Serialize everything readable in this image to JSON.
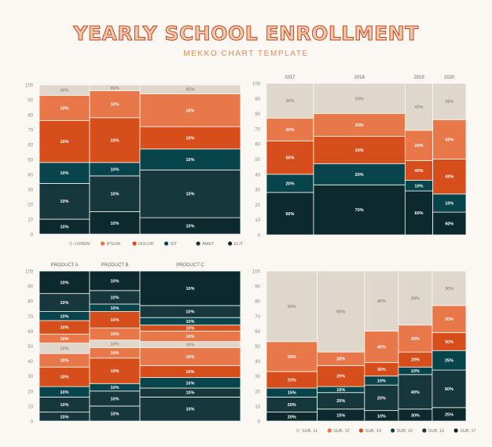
{
  "header": {
    "title": "YEARLY SCHOOL ENROLLMENT",
    "subtitle": "MEKKO CHART TEMPLATE"
  },
  "colors": {
    "lorem": "#dfd6cc",
    "ipsum": "#e8784a",
    "dolor": "#d64e1c",
    "sit": "#07444c",
    "amet": "#16383d",
    "elit": "#0c2a2d",
    "label_dark": "#1b1b1b",
    "label_light": "#ffffff",
    "label_beige": "#a38c76",
    "axis": "#8a8a8a"
  },
  "chart_data": [
    {
      "type": "mekko",
      "title": "",
      "xlabel": "",
      "ylabel": "",
      "ylim": [
        0,
        100
      ],
      "yticks": [
        0,
        10,
        20,
        30,
        40,
        50,
        60,
        70,
        80,
        90,
        100
      ],
      "column_labels": [
        "",
        "",
        ""
      ],
      "columns": [
        {
          "share": 1,
          "segments": [
            {
              "key": "elit",
              "value": 10,
              "label": "10%"
            },
            {
              "key": "amet",
              "value": 24,
              "label": "10%"
            },
            {
              "key": "sit",
              "value": 14,
              "label": "10%"
            },
            {
              "key": "dolor",
              "value": 28,
              "label": "10%"
            },
            {
              "key": "ipsum",
              "value": 17,
              "label": "10%"
            },
            {
              "key": "lorem",
              "value": 7,
              "label": "10%"
            }
          ]
        },
        {
          "share": 1,
          "segments": [
            {
              "key": "elit",
              "value": 15,
              "label": "10%"
            },
            {
              "key": "amet",
              "value": 24,
              "label": "10%"
            },
            {
              "key": "sit",
              "value": 9,
              "label": "10%"
            },
            {
              "key": "dolor",
              "value": 30,
              "label": "10%"
            },
            {
              "key": "ipsum",
              "value": 18,
              "label": "10%"
            },
            {
              "key": "lorem",
              "value": 4,
              "label": "05%"
            }
          ]
        },
        {
          "share": 2,
          "segments": [
            {
              "key": "elit",
              "value": 11,
              "label": "10%"
            },
            {
              "key": "amet",
              "value": 32,
              "label": "10%"
            },
            {
              "key": "sit",
              "value": 14,
              "label": "10%"
            },
            {
              "key": "dolor",
              "value": 15,
              "label": "10%"
            },
            {
              "key": "ipsum",
              "value": 22,
              "label": "10%"
            },
            {
              "key": "lorem",
              "value": 6,
              "label": "05%"
            }
          ]
        }
      ],
      "legend": [
        "LOREM",
        "IPSUM",
        "DOLOR",
        "SIT",
        "AMET",
        "ELIT"
      ],
      "legend_keys": [
        "lorem",
        "ipsum",
        "dolor",
        "sit",
        "amet",
        "elit"
      ]
    },
    {
      "type": "mekko",
      "title": "",
      "ylim": [
        0,
        100
      ],
      "yticks": [
        0,
        10,
        20,
        30,
        40,
        50,
        60,
        70,
        80,
        90,
        100
      ],
      "column_labels": [
        "2017",
        "2018",
        "2019",
        "2020"
      ],
      "columns": [
        {
          "share": 1.7,
          "segments": [
            {
              "key": "elit",
              "value": 28,
              "label": "60%"
            },
            {
              "key": "sit",
              "value": 12,
              "label": "20%"
            },
            {
              "key": "dolor",
              "value": 22,
              "label": "50%"
            },
            {
              "key": "ipsum",
              "value": 15,
              "label": "20%"
            },
            {
              "key": "lorem",
              "value": 23,
              "label": "30%"
            }
          ]
        },
        {
          "share": 3.3,
          "segments": [
            {
              "key": "elit",
              "value": 33,
              "label": "70%"
            },
            {
              "key": "sit",
              "value": 14,
              "label": "20%"
            },
            {
              "key": "dolor",
              "value": 18,
              "label": "30%"
            },
            {
              "key": "ipsum",
              "value": 15,
              "label": "20%"
            },
            {
              "key": "lorem",
              "value": 20,
              "label": "25%"
            }
          ]
        },
        {
          "share": 1.0,
          "segments": [
            {
              "key": "elit",
              "value": 29,
              "label": "60%"
            },
            {
              "key": "sit",
              "value": 7,
              "label": "10%"
            },
            {
              "key": "dolor",
              "value": 13,
              "label": "40%"
            },
            {
              "key": "ipsum",
              "value": 20,
              "label": "20%"
            },
            {
              "key": "lorem",
              "value": 31,
              "label": "40%"
            }
          ]
        },
        {
          "share": 1.2,
          "segments": [
            {
              "key": "elit",
              "value": 15,
              "label": "60%"
            },
            {
              "key": "sit",
              "value": 12,
              "label": "10%"
            },
            {
              "key": "dolor",
              "value": 23,
              "label": "40%"
            },
            {
              "key": "ipsum",
              "value": 26,
              "label": "50%"
            },
            {
              "key": "lorem",
              "value": 24,
              "label": "30%"
            }
          ]
        }
      ]
    },
    {
      "type": "mekko",
      "title": "",
      "ylim": [
        0,
        100
      ],
      "yticks": [
        0,
        10,
        20,
        30,
        40,
        50,
        60,
        70,
        80,
        90,
        100
      ],
      "column_labels": [
        "PRODUCT A",
        "PRODUCT B",
        "PRODUCT C"
      ],
      "columns": [
        {
          "share": 1,
          "segments": [
            {
              "key": "amet",
              "value": 6,
              "label": "10%"
            },
            {
              "key": "amet",
              "value": 10,
              "label": "10%"
            },
            {
              "key": "sit",
              "value": 7,
              "label": "10%"
            },
            {
              "key": "dolor",
              "value": 13,
              "label": "10%"
            },
            {
              "key": "ipsum",
              "value": 9,
              "label": "10%"
            },
            {
              "key": "lorem",
              "value": 7,
              "label": "10%"
            },
            {
              "key": "ipsum",
              "value": 6,
              "label": "10%"
            },
            {
              "key": "dolor",
              "value": 9,
              "label": "10%"
            },
            {
              "key": "sit",
              "value": 6,
              "label": "10%"
            },
            {
              "key": "amet",
              "value": 12,
              "label": "10%"
            },
            {
              "key": "elit",
              "value": 15,
              "label": "10%"
            }
          ]
        },
        {
          "share": 1,
          "segments": [
            {
              "key": "amet",
              "value": 10,
              "label": "10%"
            },
            {
              "key": "amet",
              "value": 10,
              "label": "10%"
            },
            {
              "key": "sit",
              "value": 5,
              "label": "10%"
            },
            {
              "key": "dolor",
              "value": 17,
              "label": "10%"
            },
            {
              "key": "ipsum",
              "value": 7,
              "label": "10%"
            },
            {
              "key": "lorem",
              "value": 5,
              "label": "10%"
            },
            {
              "key": "ipsum",
              "value": 8,
              "label": "10%"
            },
            {
              "key": "dolor",
              "value": 11,
              "label": "10%"
            },
            {
              "key": "sit",
              "value": 5,
              "label": "10%"
            },
            {
              "key": "amet",
              "value": 9,
              "label": "10%"
            },
            {
              "key": "elit",
              "value": 13,
              "label": "10%"
            }
          ]
        },
        {
          "share": 2,
          "segments": [
            {
              "key": "amet",
              "value": 16,
              "label": "10%"
            },
            {
              "key": "amet",
              "value": 6,
              "label": "10%"
            },
            {
              "key": "sit",
              "value": 7,
              "label": "10%"
            },
            {
              "key": "dolor",
              "value": 8,
              "label": "10%"
            },
            {
              "key": "ipsum",
              "value": 12,
              "label": "10%"
            },
            {
              "key": "lorem",
              "value": 4,
              "label": "10%"
            },
            {
              "key": "ipsum",
              "value": 7,
              "label": "10%"
            },
            {
              "key": "dolor",
              "value": 4,
              "label": "10%"
            },
            {
              "key": "sit",
              "value": 5,
              "label": "10%"
            },
            {
              "key": "amet",
              "value": 8,
              "label": "10%"
            },
            {
              "key": "elit",
              "value": 23,
              "label": "10%"
            }
          ]
        }
      ]
    },
    {
      "type": "mekko",
      "title": "",
      "ylim": [
        0,
        100
      ],
      "yticks": [
        0,
        10,
        20,
        30,
        40,
        50,
        60,
        70,
        80,
        90,
        100
      ],
      "column_labels": [
        "",
        "",
        "",
        "",
        ""
      ],
      "columns": [
        {
          "share": 1.5,
          "segments": [
            {
              "key": "elit",
              "value": 6,
              "label": "20%"
            },
            {
              "key": "amet",
              "value": 10,
              "label": "20%"
            },
            {
              "key": "sit",
              "value": 6,
              "label": "15%"
            },
            {
              "key": "dolor",
              "value": 11,
              "label": "20%"
            },
            {
              "key": "ipsum",
              "value": 20,
              "label": "30%"
            },
            {
              "key": "lorem",
              "value": 47,
              "label": "50%"
            }
          ]
        },
        {
          "share": 1.4,
          "segments": [
            {
              "key": "elit",
              "value": 8,
              "label": "15%"
            },
            {
              "key": "amet",
              "value": 11,
              "label": "20%"
            },
            {
              "key": "sit",
              "value": 4,
              "label": "10%"
            },
            {
              "key": "dolor",
              "value": 14,
              "label": "20%"
            },
            {
              "key": "ipsum",
              "value": 9,
              "label": "20%"
            },
            {
              "key": "lorem",
              "value": 54,
              "label": "60%"
            }
          ]
        },
        {
          "share": 1.0,
          "segments": [
            {
              "key": "elit",
              "value": 7,
              "label": "10%"
            },
            {
              "key": "amet",
              "value": 17,
              "label": "20%"
            },
            {
              "key": "sit",
              "value": 6,
              "label": "10%"
            },
            {
              "key": "dolor",
              "value": 9,
              "label": "30%"
            },
            {
              "key": "ipsum",
              "value": 21,
              "label": "40%"
            },
            {
              "key": "lorem",
              "value": 40,
              "label": "40%"
            }
          ]
        },
        {
          "share": 1.0,
          "segments": [
            {
              "key": "elit",
              "value": 8,
              "label": "30%"
            },
            {
              "key": "amet",
              "value": 23,
              "label": "40%"
            },
            {
              "key": "sit",
              "value": 5,
              "label": "10%"
            },
            {
              "key": "dolor",
              "value": 10,
              "label": "20%"
            },
            {
              "key": "ipsum",
              "value": 18,
              "label": "30%"
            },
            {
              "key": "lorem",
              "value": 36,
              "label": "30%"
            }
          ]
        },
        {
          "share": 1.0,
          "segments": [
            {
              "key": "elit",
              "value": 9,
              "label": "25%"
            },
            {
              "key": "amet",
              "value": 25,
              "label": "60%"
            },
            {
              "key": "sit",
              "value": 13,
              "label": "25%"
            },
            {
              "key": "dolor",
              "value": 12,
              "label": "30%"
            },
            {
              "key": "ipsum",
              "value": 18,
              "label": "30%"
            },
            {
              "key": "lorem",
              "value": 23,
              "label": "30%"
            }
          ]
        }
      ],
      "legend": [
        "SUB. 11",
        "SUB. 12",
        "SUB. 13",
        "SUB. 15",
        "SUB. 16",
        "SUB. 17"
      ],
      "legend_keys": [
        "lorem",
        "ipsum",
        "dolor",
        "sit",
        "amet",
        "elit"
      ]
    }
  ]
}
